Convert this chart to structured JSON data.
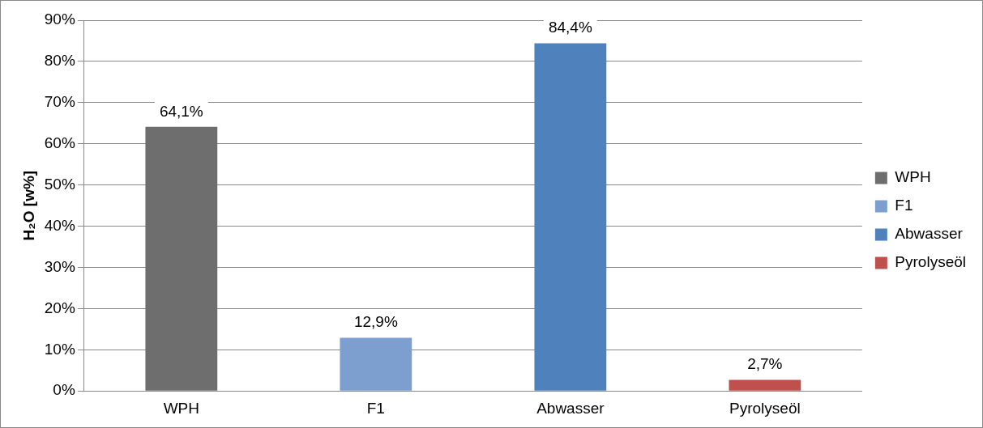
{
  "chart_data": {
    "type": "bar",
    "ylabel": "H₂O [w%]",
    "categories": [
      "WPH",
      "F1",
      "Abwasser",
      "Pyrolyseöl"
    ],
    "series": [
      {
        "name": "WPH",
        "color": "#6e6e6e",
        "values": [
          64.1,
          null,
          null,
          null
        ],
        "value_labels": [
          "64,1%",
          null,
          null,
          null
        ]
      },
      {
        "name": "F1",
        "color": "#7d9fcf",
        "values": [
          null,
          12.9,
          null,
          null
        ],
        "value_labels": [
          null,
          "12,9%",
          null,
          null
        ]
      },
      {
        "name": "Abwasser",
        "color": "#4f81bd",
        "values": [
          null,
          null,
          84.4,
          null
        ],
        "value_labels": [
          null,
          null,
          "84,4%",
          null
        ]
      },
      {
        "name": "Pyrolyseöl",
        "color": "#c0504d",
        "values": [
          null,
          null,
          null,
          2.7
        ],
        "value_labels": [
          null,
          null,
          null,
          "2,7%"
        ]
      }
    ],
    "ylim": [
      0,
      90
    ],
    "yticks": [
      {
        "value": 0,
        "label": "0%"
      },
      {
        "value": 10,
        "label": "10%"
      },
      {
        "value": 20,
        "label": "20%"
      },
      {
        "value": 30,
        "label": "30%"
      },
      {
        "value": 40,
        "label": "40%"
      },
      {
        "value": 50,
        "label": "50%"
      },
      {
        "value": 60,
        "label": "60%"
      },
      {
        "value": 70,
        "label": "70%"
      },
      {
        "value": 80,
        "label": "80%"
      },
      {
        "value": 90,
        "label": "90%"
      }
    ],
    "grid": "y",
    "legend": "right"
  }
}
